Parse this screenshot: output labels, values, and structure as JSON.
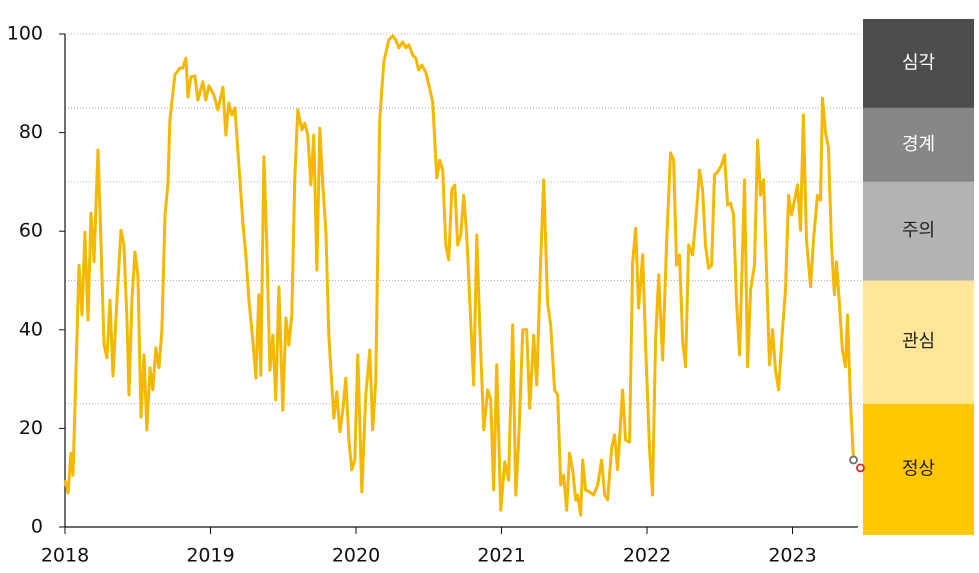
{
  "chart_data": {
    "type": "line",
    "x": [
      2018.0,
      2018.021,
      2018.041,
      2018.055,
      2018.096,
      2018.117,
      2018.137,
      2018.158,
      2018.179,
      2018.199,
      2018.227,
      2018.247,
      2018.268,
      2018.288,
      2018.309,
      2018.33,
      2018.357,
      2018.385,
      2018.405,
      2018.426,
      2018.44,
      2018.46,
      2018.481,
      2018.501,
      2018.522,
      2018.543,
      2018.563,
      2018.584,
      2018.604,
      2018.625,
      2018.646,
      2018.666,
      2018.687,
      2018.707,
      2018.721,
      2018.755,
      2018.79,
      2018.81,
      2018.831,
      2018.845,
      2018.865,
      2018.893,
      2018.913,
      2018.948,
      2018.968,
      2018.989,
      2019.023,
      2019.051,
      2019.085,
      2019.106,
      2019.126,
      2019.147,
      2019.168,
      2019.195,
      2019.223,
      2019.243,
      2019.264,
      2019.291,
      2019.312,
      2019.332,
      2019.346,
      2019.367,
      2019.387,
      2019.408,
      2019.429,
      2019.449,
      2019.47,
      2019.497,
      2019.518,
      2019.538,
      2019.559,
      2019.58,
      2019.6,
      2019.628,
      2019.648,
      2019.669,
      2019.69,
      2019.71,
      2019.731,
      2019.751,
      2019.772,
      2019.793,
      2019.813,
      2019.848,
      2019.868,
      2019.889,
      2019.909,
      2019.93,
      2019.951,
      2019.971,
      2019.992,
      2020.012,
      2020.04,
      2020.067,
      2020.095,
      2020.115,
      2020.136,
      2020.163,
      2020.191,
      2020.225,
      2020.253,
      2020.273,
      2020.294,
      2020.321,
      2020.342,
      2020.363,
      2020.39,
      2020.411,
      2020.431,
      2020.452,
      2020.479,
      2020.5,
      2020.527,
      2020.555,
      2020.576,
      2020.596,
      2020.617,
      2020.637,
      2020.658,
      2020.679,
      2020.699,
      2020.72,
      2020.74,
      2020.761,
      2020.782,
      2020.809,
      2020.83,
      2020.85,
      2020.878,
      2020.905,
      2020.926,
      2020.946,
      2020.967,
      2020.995,
      2021.022,
      2021.049,
      2021.077,
      2021.098,
      2021.118,
      2021.146,
      2021.173,
      2021.194,
      2021.221,
      2021.242,
      2021.269,
      2021.29,
      2021.317,
      2021.338,
      2021.365,
      2021.386,
      2021.407,
      2021.427,
      2021.448,
      2021.468,
      2021.489,
      2021.51,
      2021.523,
      2021.544,
      2021.558,
      2021.578,
      2021.606,
      2021.633,
      2021.661,
      2021.688,
      2021.709,
      2021.729,
      2021.757,
      2021.777,
      2021.798,
      2021.819,
      2021.832,
      2021.853,
      2021.88,
      2021.901,
      2021.922,
      2021.942,
      2021.97,
      2021.99,
      2022.018,
      2022.038,
      2022.059,
      2022.08,
      2022.107,
      2022.135,
      2022.162,
      2022.183,
      2022.203,
      2022.224,
      2022.245,
      2022.265,
      2022.286,
      2022.313,
      2022.341,
      2022.361,
      2022.382,
      2022.402,
      2022.423,
      2022.444,
      2022.464,
      2022.485,
      2022.512,
      2022.533,
      2022.554,
      2022.574,
      2022.595,
      2022.615,
      2022.636,
      2022.657,
      2022.67,
      2022.691,
      2022.712,
      2022.739,
      2022.76,
      2022.78,
      2022.801,
      2022.821,
      2022.842,
      2022.863,
      2022.883,
      2022.904,
      2022.931,
      2022.952,
      2022.973,
      2022.993,
      2023.014,
      2023.034,
      2023.055,
      2023.075,
      2023.096,
      2023.124,
      2023.144,
      2023.172,
      2023.192,
      2023.206,
      2023.227,
      2023.247,
      2023.268,
      2023.288,
      2023.302,
      2023.323,
      2023.343,
      2023.364,
      2023.378,
      2023.398,
      2023.419
    ],
    "values": [
      9.5,
      6.9,
      15.0,
      10.5,
      53.1,
      43.0,
      59.8,
      42.0,
      63.7,
      53.8,
      76.5,
      58.2,
      37.1,
      34.3,
      46.0,
      30.6,
      46.0,
      60.2,
      57.2,
      42.0,
      26.8,
      46.0,
      55.8,
      51.1,
      22.3,
      34.9,
      19.7,
      32.3,
      27.8,
      36.3,
      32.3,
      40.0,
      63.3,
      69.4,
      82.6,
      91.7,
      93.1,
      93.1,
      95.1,
      87.2,
      91.3,
      91.5,
      86.6,
      90.3,
      86.6,
      89.5,
      87.6,
      84.6,
      89.2,
      79.5,
      86.0,
      83.6,
      85.0,
      73.4,
      61.3,
      55.2,
      46.0,
      37.9,
      30.2,
      47.1,
      30.8,
      75.1,
      57.2,
      31.8,
      38.9,
      25.8,
      48.7,
      23.7,
      42.4,
      36.9,
      43.0,
      71.4,
      84.6,
      80.5,
      81.9,
      79.5,
      69.4,
      79.5,
      52.1,
      80.9,
      69.4,
      60.2,
      38.9,
      22.1,
      27.4,
      19.3,
      23.7,
      30.2,
      17.6,
      11.6,
      13.6,
      34.9,
      7.1,
      26.8,
      35.9,
      19.7,
      29.8,
      82.6,
      94.3,
      98.8,
      99.6,
      98.8,
      97.2,
      98.4,
      97.2,
      97.8,
      95.7,
      95.1,
      92.7,
      93.7,
      92.3,
      89.7,
      86.2,
      70.8,
      74.4,
      72.4,
      57.2,
      54.2,
      68.4,
      69.4,
      57.2,
      59.2,
      67.3,
      59.2,
      46.0,
      28.8,
      59.2,
      41.0,
      19.7,
      27.8,
      25.8,
      7.5,
      32.9,
      3.4,
      13.2,
      9.5,
      41.0,
      6.5,
      17.6,
      40.0,
      40.0,
      24.1,
      38.9,
      28.8,
      54.2,
      70.4,
      45.4,
      41.0,
      27.8,
      26.8,
      8.5,
      10.5,
      3.4,
      15.0,
      11.6,
      5.5,
      6.5,
      2.4,
      13.6,
      7.5,
      7.1,
      6.5,
      8.5,
      13.6,
      6.5,
      5.5,
      16.0,
      18.7,
      11.6,
      21.7,
      27.8,
      17.6,
      17.2,
      53.6,
      60.6,
      44.4,
      55.2,
      36.9,
      15.6,
      6.5,
      37.9,
      51.1,
      33.9,
      58.2,
      75.9,
      74.4,
      53.1,
      55.2,
      37.5,
      32.5,
      57.2,
      55.2,
      64.3,
      72.4,
      68.4,
      57.2,
      52.5,
      53.1,
      71.4,
      72.0,
      73.4,
      75.5,
      65.3,
      65.7,
      63.3,
      46.0,
      34.9,
      56.2,
      70.4,
      32.5,
      48.1,
      53.1,
      78.5,
      67.3,
      70.4,
      52.1,
      32.9,
      40.0,
      31.8,
      27.8,
      40.0,
      48.1,
      67.3,
      63.3,
      66.3,
      69.4,
      60.2,
      83.6,
      58.2,
      48.7,
      58.2,
      67.3,
      66.3,
      87.0,
      79.9,
      76.9,
      57.2,
      47.1,
      53.8,
      45.0,
      35.9,
      32.5,
      43.0,
      25.8,
      13.6
    ],
    "color": "#f5b800",
    "last_marker_color": "#707070",
    "extra_point": {
      "x": 2023.467,
      "value": 12.0,
      "color": "#e8202a"
    },
    "xlim": [
      2018,
      2023.45
    ],
    "xticks": [
      2018,
      2019,
      2020,
      2021,
      2022,
      2023
    ],
    "ylim": [
      0,
      100
    ],
    "yticks": [
      0,
      20,
      40,
      60,
      80,
      100
    ],
    "zones": [
      {
        "name": "심각",
        "from": 85,
        "to": 100,
        "color": "#4d4d4d",
        "label_color": "#ffffff"
      },
      {
        "name": "경계",
        "from": 70,
        "to": 85,
        "color": "#878787",
        "label_color": "#ffffff"
      },
      {
        "name": "주의",
        "from": 50,
        "to": 70,
        "color": "#b3b3b3",
        "label_color": "#222222"
      },
      {
        "name": "관심",
        "from": 25,
        "to": 50,
        "color": "#ffe699",
        "label_color": "#222222"
      },
      {
        "name": "정상",
        "from": 0,
        "to": 25,
        "color": "#ffc800",
        "label_color": "#222222"
      }
    ]
  }
}
